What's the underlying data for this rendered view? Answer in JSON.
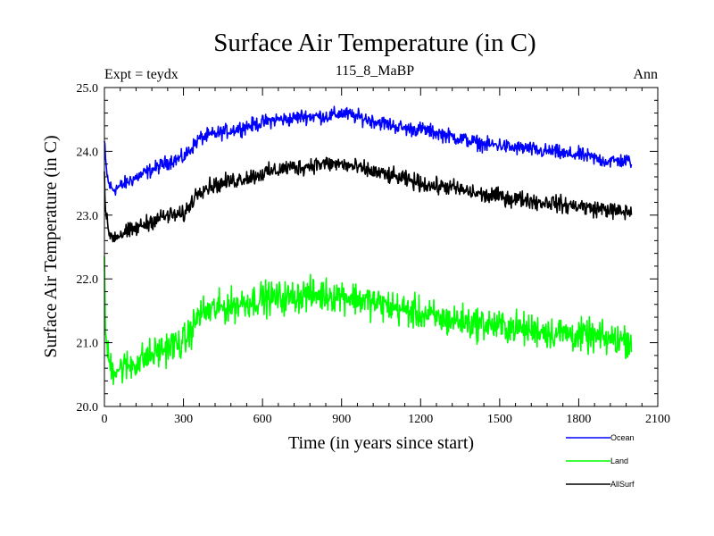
{
  "chart_data": {
    "type": "line",
    "title": "Surface Air Temperature (in C)",
    "subtitle_left": "Expt = teydx",
    "subtitle_center": "115_8_MaBP",
    "subtitle_right": "Ann",
    "xlabel": "Time (in years since start)",
    "ylabel": "Surface Air Temperature (in C)",
    "xlim": [
      0,
      2100
    ],
    "ylim": [
      20.0,
      25.0
    ],
    "xticks": [
      0,
      300,
      600,
      900,
      1200,
      1500,
      1800,
      2100
    ],
    "xtick_labels": [
      "0",
      "300",
      "600",
      "900",
      "1200",
      "1500",
      "1800",
      "2100"
    ],
    "yticks": [
      20.0,
      21.0,
      22.0,
      23.0,
      24.0,
      25.0
    ],
    "ytick_labels": [
      "20.0",
      "21.0",
      "22.0",
      "23.0",
      "24.0",
      "25.0"
    ],
    "legend_position": "bottom-right, below plot",
    "series": [
      {
        "name": "Ocean",
        "color": "#0000ff",
        "noise": 0.07,
        "x": [
          0,
          5,
          15,
          30,
          60,
          100,
          150,
          200,
          250,
          300,
          330,
          360,
          400,
          450,
          500,
          550,
          600,
          650,
          700,
          750,
          800,
          850,
          900,
          950,
          1000,
          1050,
          1100,
          1150,
          1200,
          1250,
          1300,
          1350,
          1400,
          1450,
          1500,
          1550,
          1600,
          1650,
          1700,
          1750,
          1800,
          1850,
          1900,
          1950,
          2000
        ],
        "values": [
          24.15,
          23.8,
          23.5,
          23.4,
          23.45,
          23.55,
          23.65,
          23.75,
          23.85,
          23.9,
          24.05,
          24.2,
          24.25,
          24.3,
          24.35,
          24.4,
          24.45,
          24.5,
          24.5,
          24.55,
          24.55,
          24.55,
          24.6,
          24.55,
          24.5,
          24.45,
          24.4,
          24.35,
          24.35,
          24.3,
          24.25,
          24.2,
          24.15,
          24.1,
          24.1,
          24.05,
          24.05,
          24.0,
          24.0,
          23.95,
          23.95,
          23.9,
          23.85,
          23.85,
          23.85
        ]
      },
      {
        "name": "Land",
        "color": "#00ff00",
        "noise": 0.16,
        "x": [
          0,
          5,
          15,
          30,
          60,
          100,
          150,
          200,
          250,
          300,
          330,
          360,
          400,
          450,
          500,
          550,
          600,
          650,
          700,
          750,
          800,
          850,
          900,
          950,
          1000,
          1050,
          1100,
          1150,
          1200,
          1250,
          1300,
          1350,
          1400,
          1450,
          1500,
          1550,
          1600,
          1650,
          1700,
          1750,
          1800,
          1850,
          1900,
          1950,
          2000
        ],
        "values": [
          22.1,
          21.1,
          20.75,
          20.6,
          20.6,
          20.65,
          20.75,
          20.85,
          20.95,
          21.0,
          21.2,
          21.45,
          21.5,
          21.55,
          21.6,
          21.65,
          21.7,
          21.7,
          21.7,
          21.75,
          21.75,
          21.75,
          21.75,
          21.7,
          21.65,
          21.6,
          21.55,
          21.5,
          21.45,
          21.4,
          21.35,
          21.35,
          21.3,
          21.3,
          21.25,
          21.25,
          21.2,
          21.2,
          21.15,
          21.15,
          21.1,
          21.1,
          21.05,
          21.05,
          21.05
        ]
      },
      {
        "name": "AllSurf",
        "color": "#000000",
        "noise": 0.08,
        "x": [
          0,
          5,
          15,
          30,
          60,
          100,
          150,
          200,
          250,
          300,
          330,
          360,
          400,
          450,
          500,
          550,
          600,
          650,
          700,
          750,
          800,
          850,
          900,
          950,
          1000,
          1050,
          1100,
          1150,
          1200,
          1250,
          1300,
          1350,
          1400,
          1450,
          1500,
          1550,
          1600,
          1650,
          1700,
          1750,
          1800,
          1850,
          1900,
          1950,
          2000
        ],
        "values": [
          23.65,
          23.0,
          22.75,
          22.65,
          22.7,
          22.75,
          22.85,
          22.95,
          23.0,
          23.0,
          23.2,
          23.4,
          23.45,
          23.5,
          23.55,
          23.6,
          23.65,
          23.7,
          23.75,
          23.75,
          23.8,
          23.8,
          23.8,
          23.75,
          23.7,
          23.65,
          23.6,
          23.55,
          23.5,
          23.45,
          23.45,
          23.4,
          23.35,
          23.3,
          23.3,
          23.25,
          23.25,
          23.2,
          23.2,
          23.15,
          23.15,
          23.1,
          23.1,
          23.05,
          23.05
        ]
      }
    ]
  }
}
